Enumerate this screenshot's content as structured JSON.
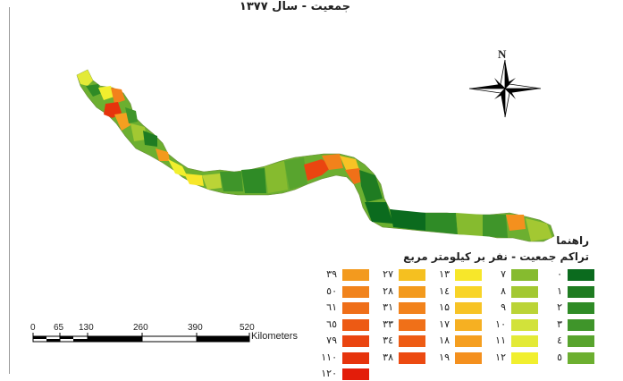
{
  "title": "جمعیت - سال ۱۳۷۷",
  "north_arrow": {
    "label": "N"
  },
  "legend": {
    "heading": "راهنما",
    "subheading": "تراکم جمعیت - نفر بر کیلومتر مربع",
    "classes": [
      {
        "label": "۰",
        "color": "#0b6b1e"
      },
      {
        "label": "۱",
        "color": "#1f7c22"
      },
      {
        "label": "۲",
        "color": "#2f8b26"
      },
      {
        "label": "۳",
        "color": "#3f952a"
      },
      {
        "label": "٤",
        "color": "#58a42e"
      },
      {
        "label": "٥",
        "color": "#6caf30"
      },
      {
        "label": "۷",
        "color": "#86bb2f"
      },
      {
        "label": "۸",
        "color": "#a3c832"
      },
      {
        "label": "۹",
        "color": "#bbd436"
      },
      {
        "label": "۱۰",
        "color": "#d2e23a"
      },
      {
        "label": "۱۱",
        "color": "#e3ea37"
      },
      {
        "label": "۱۲",
        "color": "#f1ef2e"
      },
      {
        "label": "۱۳",
        "color": "#f7e72a"
      },
      {
        "label": "۱٤",
        "color": "#f8d428"
      },
      {
        "label": "۱۵",
        "color": "#f7c325"
      },
      {
        "label": "۱۷",
        "color": "#f6b022"
      },
      {
        "label": "۱۸",
        "color": "#f59f20"
      },
      {
        "label": "۱۹",
        "color": "#f4901e"
      },
      {
        "label": "۲۷",
        "color": "#f5c020"
      },
      {
        "label": "۲۸",
        "color": "#f39a1d"
      },
      {
        "label": "۳۱",
        "color": "#f2821b"
      },
      {
        "label": "۳۳",
        "color": "#f07018"
      },
      {
        "label": "۳٤",
        "color": "#ee5c14"
      },
      {
        "label": "۳۸",
        "color": "#ec4a11"
      },
      {
        "label": "۳۹",
        "color": "#f39a1e"
      },
      {
        "label": "٥۰",
        "color": "#f1831c"
      },
      {
        "label": "٦۱",
        "color": "#ef6e18"
      },
      {
        "label": "٦٥",
        "color": "#ed5a14"
      },
      {
        "label": "۷۹",
        "color": "#ea4510"
      },
      {
        "label": "۱۱۰",
        "color": "#e6330c"
      },
      {
        "label": "۱۲۰",
        "color": "#e31d0a"
      }
    ]
  },
  "scale_bar": {
    "ticks": [
      "0",
      "65",
      "130",
      "260",
      "390",
      "520"
    ],
    "unit": "Kilometers"
  },
  "colors": {
    "dark_green": "#0b6b1e",
    "green": "#3f952a",
    "light_green": "#a3c832",
    "yellow": "#f1ef2e",
    "orange": "#f39a1d",
    "red": "#e31d0a"
  }
}
